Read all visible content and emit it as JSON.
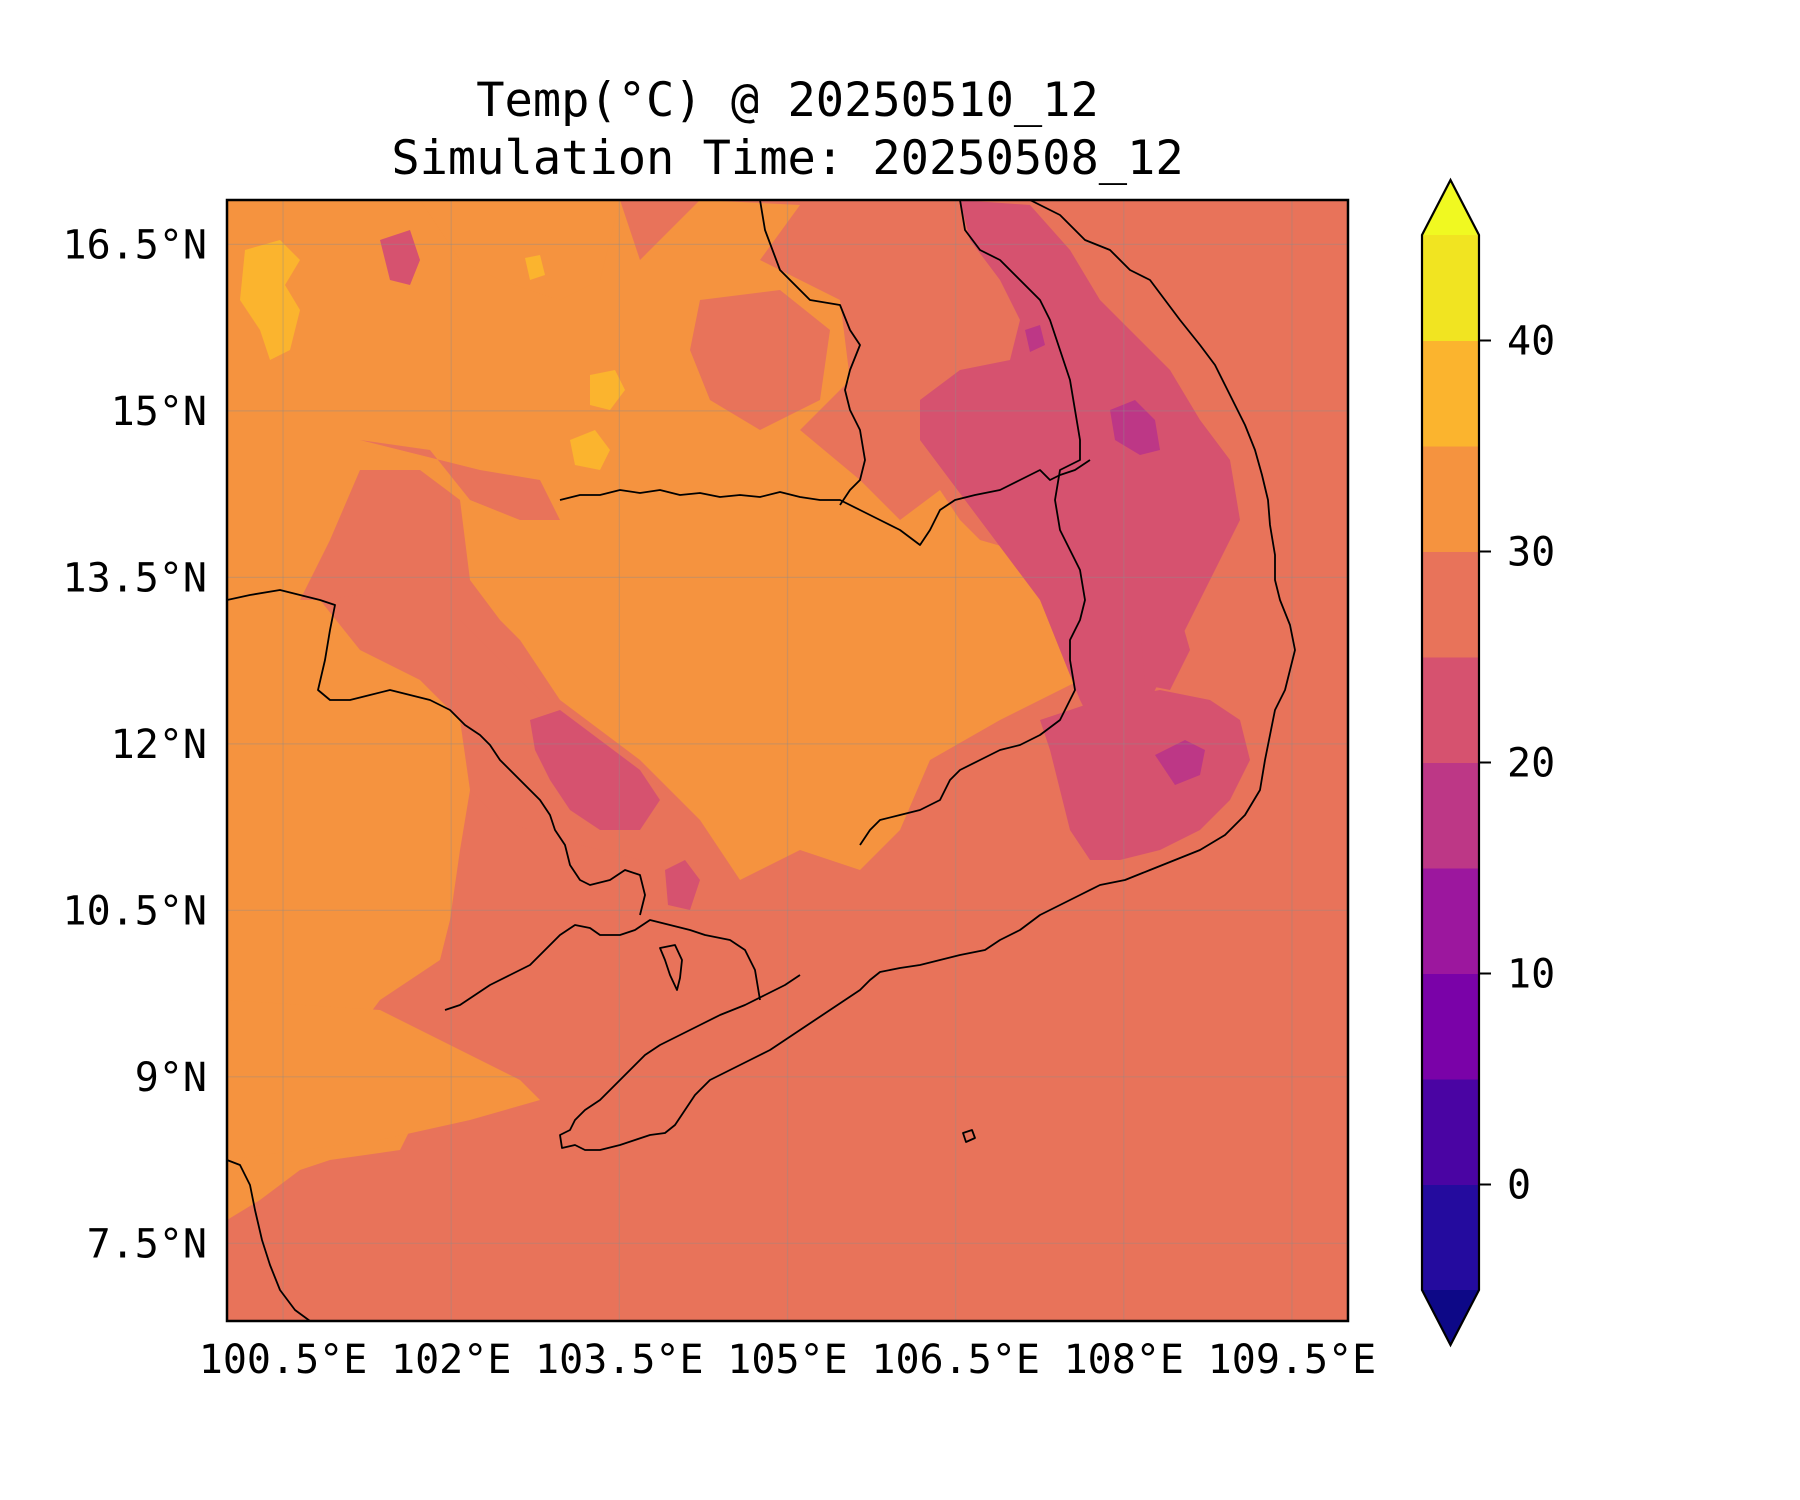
{
  "title": "Temp(°C) @ 20250510_12",
  "subtitle": "Simulation Time: 20250508_12",
  "map": {
    "region": "Cambodia / southern Indochina",
    "lon_range": [
      100.0,
      110.0
    ],
    "lat_range": [
      6.8,
      16.9
    ],
    "lon_ticks": [
      "100.5°E",
      "102°E",
      "103.5°E",
      "105°E",
      "106.5°E",
      "108°E",
      "109.5°E"
    ],
    "lon_tick_values": [
      100.5,
      102,
      103.5,
      105,
      106.5,
      108,
      109.5
    ],
    "lat_ticks": [
      "16.5°N",
      "15°N",
      "13.5°N",
      "12°N",
      "10.5°N",
      "9°N",
      "7.5°N"
    ],
    "lat_tick_values": [
      16.5,
      15,
      13.5,
      12,
      10.5,
      9,
      7.5
    ],
    "gridlines": true,
    "fill_colors": {
      "25-30": "#e8735a",
      "30-35": "#f5933f",
      "35-40": "#fbb42e",
      "40-45": "#f1e421",
      "20-25": "#d6526f",
      "15-20": "#bd3786"
    }
  },
  "colorbar": {
    "levels": [
      -5,
      0,
      5,
      10,
      15,
      20,
      25,
      30,
      35,
      40,
      45
    ],
    "colors": [
      "#240b9e",
      "#4a04a3",
      "#7a02a8",
      "#9c179e",
      "#bd3786",
      "#d6526f",
      "#e8735a",
      "#f5933f",
      "#fbb42e",
      "#f1e421"
    ],
    "under_color": "#0d0887",
    "over_color": "#f0f921",
    "extend": "both",
    "tick_labels": [
      "0",
      "10",
      "20",
      "30",
      "40"
    ],
    "tick_values": [
      0,
      10,
      20,
      30,
      40
    ]
  }
}
